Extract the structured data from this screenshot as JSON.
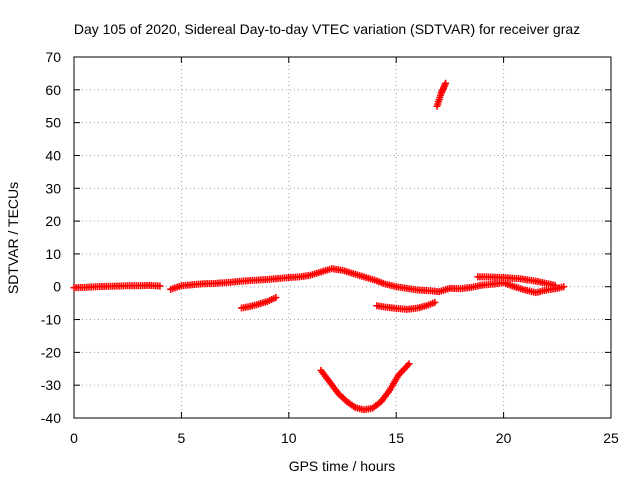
{
  "chart_data": {
    "type": "scatter",
    "title": "Day 105 of 2020, Sidereal Day-to-day VTEC variation (SDTVAR) for receiver graz",
    "xlabel": "GPS time / hours",
    "ylabel": "SDTVAR / TECUs",
    "xlim": [
      0,
      25
    ],
    "ylim": [
      -40,
      70
    ],
    "xticks": [
      "0",
      "5",
      "10",
      "15",
      "20",
      "25"
    ],
    "yticks": [
      "-40",
      "-30",
      "-20",
      "-10",
      "0",
      "10",
      "20",
      "30",
      "40",
      "50",
      "60",
      "70"
    ],
    "grid": true,
    "grid_style": "dotted",
    "marker": "plus",
    "color": "#ff0000",
    "series": [
      {
        "x": [
          0.0,
          0.5,
          1.0,
          1.5,
          2.0,
          2.5,
          3.0,
          3.5,
          3.8,
          4.0
        ],
        "y": [
          -0.3,
          -0.2,
          0.0,
          0.1,
          0.2,
          0.3,
          0.3,
          0.4,
          0.3,
          0.2
        ]
      },
      {
        "x": [
          4.5,
          5.0,
          5.5,
          6.0,
          6.5,
          7.0,
          7.5,
          8.0,
          8.5,
          9.0,
          9.5,
          10.0,
          10.5,
          11.0,
          11.5,
          12.0,
          12.5,
          13.0,
          13.5,
          14.0,
          14.5,
          15.0,
          15.5,
          16.0,
          16.5,
          17.0,
          17.5,
          18.0,
          18.5,
          19.0,
          19.5,
          20.0,
          20.5,
          21.0,
          21.5,
          22.0,
          22.5,
          22.8
        ],
        "y": [
          -0.8,
          0.3,
          0.6,
          0.9,
          1.0,
          1.2,
          1.5,
          1.8,
          2.0,
          2.2,
          2.5,
          2.8,
          3.0,
          3.5,
          4.5,
          5.5,
          5.0,
          4.0,
          3.0,
          2.0,
          0.8,
          0.0,
          -0.5,
          -1.0,
          -1.2,
          -1.5,
          -0.5,
          -0.6,
          -0.2,
          0.5,
          0.8,
          1.2,
          0.0,
          -1.0,
          -1.8,
          -1.0,
          -0.5,
          0.0
        ]
      },
      {
        "x": [
          18.8,
          19.2,
          19.6,
          20.0,
          20.4,
          20.8,
          21.2,
          21.6,
          22.0,
          22.4
        ],
        "y": [
          3.0,
          3.0,
          2.9,
          2.8,
          2.6,
          2.4,
          2.0,
          1.6,
          1.0,
          0.4
        ]
      },
      {
        "x": [
          7.8,
          8.2,
          8.6,
          9.0,
          9.4
        ],
        "y": [
          -6.5,
          -6.0,
          -5.3,
          -4.5,
          -3.3
        ]
      },
      {
        "x": [
          14.1,
          14.6,
          15.0,
          15.5,
          16.0,
          16.4,
          16.8
        ],
        "y": [
          -5.8,
          -6.3,
          -6.6,
          -6.9,
          -6.5,
          -5.8,
          -4.8
        ]
      },
      {
        "x": [
          11.5,
          11.9,
          12.3,
          12.7,
          13.1,
          13.5,
          13.9,
          14.3,
          14.7,
          15.1,
          15.6
        ],
        "y": [
          -25.5,
          -29.0,
          -32.5,
          -35.0,
          -36.8,
          -37.5,
          -37.0,
          -35.0,
          -31.5,
          -27.0,
          -23.5
        ]
      },
      {
        "x": [
          16.9,
          17.0,
          17.1,
          17.2,
          17.3
        ],
        "y": [
          55.0,
          57.0,
          59.0,
          60.5,
          62.0
        ]
      }
    ]
  }
}
